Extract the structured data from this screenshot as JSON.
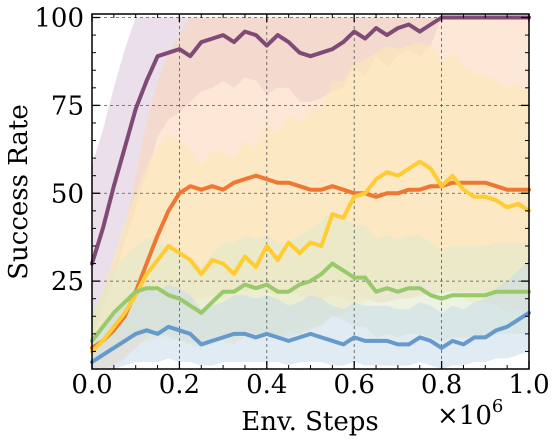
{
  "chart_data": {
    "type": "line",
    "title": "",
    "xlabel": "Env. Steps",
    "ylabel": "Success Rate",
    "x_multiplier_label": "×10",
    "x_multiplier_exp": "6",
    "xlim": [
      0,
      1.0
    ],
    "ylim": [
      0,
      101
    ],
    "xticks": [
      0.0,
      0.2,
      0.4,
      0.6,
      0.8,
      1.0
    ],
    "xtick_labels": [
      "0.0",
      "0.2",
      "0.4",
      "0.6",
      "0.8",
      "1.0"
    ],
    "yticks": [
      25,
      50,
      75,
      100
    ],
    "ytick_labels": [
      "25",
      "50",
      "75",
      "100"
    ],
    "grid": true,
    "x": [
      0.0,
      0.025,
      0.05,
      0.075,
      0.1,
      0.125,
      0.15,
      0.175,
      0.2,
      0.225,
      0.25,
      0.275,
      0.3,
      0.325,
      0.35,
      0.375,
      0.4,
      0.425,
      0.45,
      0.475,
      0.5,
      0.525,
      0.55,
      0.575,
      0.6,
      0.625,
      0.65,
      0.675,
      0.7,
      0.725,
      0.75,
      0.775,
      0.8,
      0.825,
      0.85,
      0.875,
      0.9,
      0.925,
      0.95,
      0.975,
      1.0
    ],
    "series": [
      {
        "color": "#7f4a75",
        "fill": "#d8c4da",
        "values": [
          30,
          40,
          52,
          63,
          74,
          82,
          89,
          90,
          91,
          89,
          93,
          94,
          95,
          93,
          96,
          95,
          92,
          95,
          93,
          90,
          89,
          90,
          91,
          93,
          96,
          94,
          97,
          95,
          97,
          98,
          96,
          98,
          100,
          100,
          100,
          100,
          100,
          100,
          100,
          100,
          100
        ],
        "lower": [
          8,
          18,
          26,
          36,
          46,
          55,
          66,
          71,
          73,
          76,
          79,
          80,
          82,
          80,
          83,
          82,
          78,
          80,
          80,
          76,
          76,
          77,
          79,
          80,
          86,
          83,
          89,
          86,
          89,
          91,
          89,
          92,
          100,
          100,
          100,
          100,
          100,
          100,
          100,
          100,
          100
        ],
        "upper": [
          58,
          68,
          80,
          91,
          100,
          100,
          100,
          100,
          100,
          100,
          100,
          100,
          100,
          100,
          100,
          100,
          100,
          100,
          100,
          100,
          100,
          100,
          100,
          100,
          100,
          100,
          100,
          100,
          100,
          100,
          100,
          100,
          100,
          100,
          100,
          100,
          100,
          100,
          100,
          100,
          100
        ]
      },
      {
        "color": "#ee7733",
        "fill": "#fbd3b6",
        "values": [
          6,
          8,
          11,
          15,
          22,
          30,
          38,
          45,
          50,
          52,
          51,
          52,
          51,
          53,
          54,
          55,
          54,
          53,
          53,
          52,
          51,
          51,
          52,
          51,
          50,
          50,
          49,
          50,
          50,
          51,
          51,
          52,
          52,
          53,
          53,
          53,
          53,
          52,
          51,
          51,
          51
        ],
        "lower": [
          0,
          0,
          1,
          3,
          6,
          9,
          12,
          15,
          17,
          19,
          20,
          21,
          20,
          22,
          22,
          23,
          22,
          21,
          22,
          21,
          20,
          20,
          21,
          20,
          19,
          20,
          19,
          19,
          20,
          20,
          21,
          21,
          22,
          22,
          22,
          22,
          22,
          21,
          20,
          20,
          20
        ],
        "upper": [
          14,
          22,
          30,
          40,
          55,
          70,
          82,
          90,
          95,
          100,
          100,
          100,
          100,
          100,
          100,
          100,
          100,
          100,
          100,
          100,
          100,
          100,
          100,
          100,
          100,
          100,
          100,
          100,
          100,
          100,
          100,
          100,
          100,
          100,
          100,
          100,
          100,
          100,
          100,
          100,
          100
        ]
      },
      {
        "color": "#ffcc33",
        "fill": "#fbe9b3",
        "values": [
          5,
          8,
          12,
          16,
          21,
          27,
          31,
          35,
          33,
          31,
          27,
          31,
          30,
          27,
          32,
          29,
          35,
          31,
          36,
          33,
          36,
          35,
          44,
          43,
          49,
          50,
          54,
          56,
          55,
          57,
          59,
          57,
          52,
          55,
          51,
          49,
          49,
          48,
          46,
          47,
          45
        ],
        "lower": [
          0,
          1,
          3,
          5,
          7,
          8,
          9,
          10,
          9,
          8,
          7,
          8,
          8,
          7,
          9,
          8,
          10,
          9,
          11,
          10,
          12,
          12,
          15,
          15,
          18,
          19,
          22,
          24,
          23,
          24,
          25,
          24,
          21,
          23,
          20,
          19,
          19,
          18,
          16,
          17,
          16
        ],
        "upper": [
          14,
          22,
          32,
          42,
          50,
          58,
          63,
          67,
          65,
          62,
          58,
          62,
          62,
          60,
          65,
          63,
          70,
          67,
          72,
          70,
          74,
          74,
          82,
          82,
          87,
          88,
          90,
          92,
          91,
          92,
          93,
          92,
          87,
          90,
          86,
          84,
          84,
          82,
          80,
          81,
          79
        ]
      },
      {
        "color": "#99c96a",
        "fill": "#dde9cc",
        "values": [
          8,
          12,
          16,
          19,
          22,
          23,
          23,
          21,
          20,
          18,
          16,
          19,
          22,
          22,
          24,
          23,
          24,
          22,
          22,
          24,
          25,
          27,
          30,
          28,
          26,
          26,
          22,
          23,
          22,
          23,
          23,
          21,
          20,
          21,
          21,
          21,
          21,
          22,
          22,
          22,
          22
        ],
        "lower": [
          2,
          4,
          6,
          8,
          9,
          10,
          10,
          9,
          8,
          7,
          6,
          7,
          9,
          9,
          10,
          10,
          10,
          9,
          9,
          10,
          11,
          13,
          15,
          14,
          12,
          12,
          9,
          10,
          9,
          10,
          10,
          9,
          8,
          9,
          9,
          9,
          9,
          10,
          10,
          10,
          10
        ],
        "upper": [
          16,
          22,
          28,
          32,
          35,
          37,
          37,
          34,
          33,
          31,
          29,
          33,
          36,
          36,
          38,
          37,
          38,
          36,
          36,
          38,
          40,
          42,
          45,
          43,
          41,
          41,
          37,
          38,
          37,
          38,
          38,
          36,
          34,
          35,
          35,
          35,
          35,
          36,
          36,
          36,
          36
        ]
      },
      {
        "color": "#6699cc",
        "fill": "#c9dbe9",
        "values": [
          2,
          4,
          6,
          8,
          10,
          11,
          10,
          12,
          11,
          10,
          7,
          8,
          9,
          10,
          10,
          9,
          10,
          9,
          8,
          9,
          10,
          9,
          8,
          7,
          9,
          8,
          8,
          8,
          7,
          7,
          9,
          8,
          6,
          8,
          7,
          9,
          9,
          11,
          12,
          14,
          16
        ],
        "lower": [
          0,
          0,
          0,
          1,
          2,
          2,
          2,
          3,
          2,
          2,
          1,
          1,
          2,
          2,
          2,
          2,
          2,
          2,
          1,
          2,
          2,
          2,
          1,
          1,
          2,
          1,
          1,
          1,
          1,
          1,
          2,
          1,
          0,
          1,
          1,
          2,
          2,
          3,
          3,
          4,
          5
        ],
        "upper": [
          8,
          12,
          15,
          18,
          21,
          23,
          22,
          24,
          23,
          21,
          17,
          18,
          19,
          21,
          21,
          20,
          21,
          20,
          18,
          19,
          21,
          20,
          18,
          17,
          19,
          18,
          18,
          18,
          17,
          17,
          19,
          18,
          16,
          18,
          17,
          19,
          20,
          23,
          25,
          28,
          31
        ]
      }
    ]
  }
}
